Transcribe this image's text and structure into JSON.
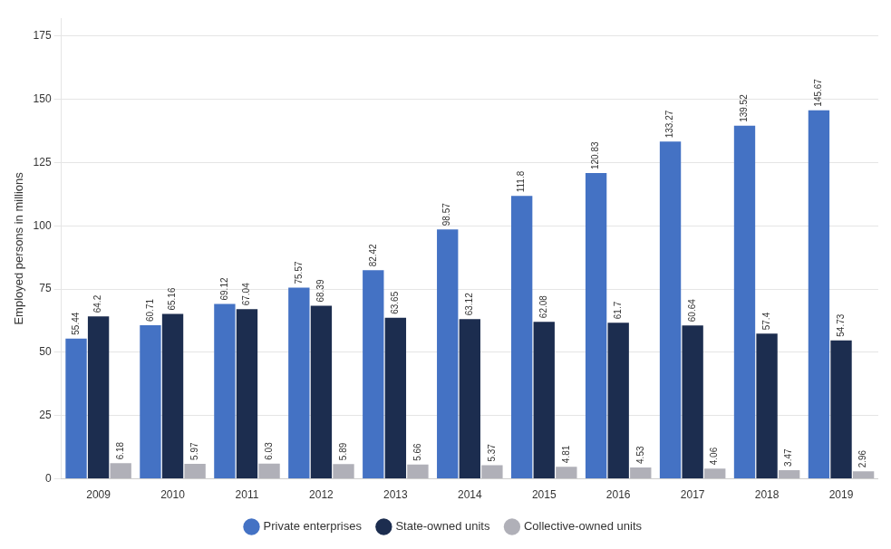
{
  "chart_data": {
    "type": "bar",
    "categories": [
      "2009",
      "2010",
      "2011",
      "2012",
      "2013",
      "2014",
      "2015",
      "2016",
      "2017",
      "2018",
      "2019"
    ],
    "series": [
      {
        "name": "Private enterprises",
        "color": "#4472c4",
        "values": [
          55.44,
          60.71,
          69.12,
          75.57,
          82.42,
          98.57,
          111.8,
          120.83,
          133.27,
          139.52,
          145.67
        ]
      },
      {
        "name": "State-owned units",
        "color": "#1c2d4f",
        "values": [
          64.2,
          65.16,
          67.04,
          68.39,
          63.65,
          63.12,
          62.08,
          61.7,
          60.64,
          57.4,
          54.73
        ]
      },
      {
        "name": "Collective-owned units",
        "color": "#b0b0b8",
        "values": [
          6.18,
          5.97,
          6.03,
          5.89,
          5.66,
          5.37,
          4.81,
          4.53,
          4.06,
          3.47,
          2.96
        ]
      }
    ],
    "ylabel": "Employed persons in millions",
    "ylim": [
      0,
      182
    ],
    "yticks": [
      0,
      25,
      50,
      75,
      100,
      125,
      150,
      175
    ],
    "grid": true,
    "legend": "bottom",
    "data_labels": true
  }
}
